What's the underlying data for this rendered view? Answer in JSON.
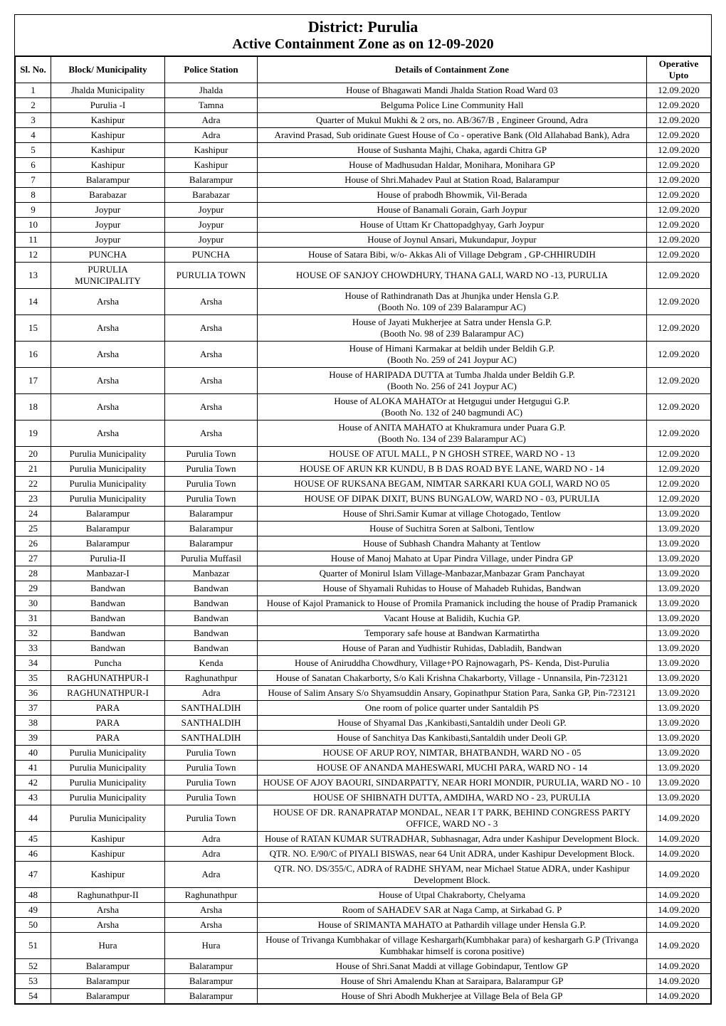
{
  "header": {
    "title": "District: Purulia",
    "subtitle": "Active Containment Zone as on 12-09-2020"
  },
  "columns": {
    "sl": "Sl. No.",
    "block": "Block/ Municipality",
    "ps": "Police Station",
    "details": "Details of Containment Zone",
    "date": "Operative Upto"
  },
  "style": {
    "font_family": "Times New Roman",
    "title_fontsize": 22,
    "subtitle_fontsize": 20,
    "cell_fontsize": 13,
    "border_color": "#000000",
    "background_color": "#ffffff",
    "text_color": "#000000",
    "col_widths": {
      "sl": 50,
      "block": 160,
      "ps": 130,
      "date": 90
    }
  },
  "rows": [
    {
      "sl": "1",
      "block": "Jhalda Municipality",
      "ps": "Jhalda",
      "details": "House of Bhagawati Mandi Jhalda Station Road Ward 03",
      "date": "12.09.2020"
    },
    {
      "sl": "2",
      "block": "Purulia -I",
      "ps": "Tamna",
      "details": "Belguma Police Line Community Hall",
      "date": "12.09.2020"
    },
    {
      "sl": "3",
      "block": "Kashipur",
      "ps": "Adra",
      "details": "Quarter of Mukul Mukhi & 2 ors,  no. AB/367/B , Engineer Ground, Adra",
      "date": "12.09.2020"
    },
    {
      "sl": "4",
      "block": "Kashipur",
      "ps": "Adra",
      "details": "Aravind Prasad, Sub oridinate Guest House of Co - operative Bank (Old Allahabad Bank), Adra",
      "date": "12.09.2020"
    },
    {
      "sl": "5",
      "block": "Kashipur",
      "ps": "Kashipur",
      "details": "House of Sushanta Majhi, Chaka, agardi Chitra GP",
      "date": "12.09.2020"
    },
    {
      "sl": "6",
      "block": "Kashipur",
      "ps": "Kashipur",
      "details": "House of Madhusudan Haldar, Monihara, Monihara GP",
      "date": "12.09.2020"
    },
    {
      "sl": "7",
      "block": "Balarampur",
      "ps": "Balarampur",
      "details": "House of Shri.Mahadev Paul at Station Road, Balarampur",
      "date": "12.09.2020"
    },
    {
      "sl": "8",
      "block": "Barabazar",
      "ps": "Barabazar",
      "details": "House of prabodh Bhowmik, Vil-Berada",
      "date": "12.09.2020"
    },
    {
      "sl": "9",
      "block": "Joypur",
      "ps": "Joypur",
      "details": "House of Banamali Gorain, Garh Joypur",
      "date": "12.09.2020"
    },
    {
      "sl": "10",
      "block": "Joypur",
      "ps": "Joypur",
      "details": "House of Uttam Kr Chattopadghyay, Garh Joypur",
      "date": "12.09.2020"
    },
    {
      "sl": "11",
      "block": "Joypur",
      "ps": "Joypur",
      "details": "House of Joynul Ansari, Mukundapur, Joypur",
      "date": "12.09.2020"
    },
    {
      "sl": "12",
      "block": "PUNCHA",
      "ps": "PUNCHA",
      "details": "House of Satara Bibi,  w/o- Akkas Ali of Village Debgram , GP-CHHIRUDIH",
      "date": "12.09.2020"
    },
    {
      "sl": "13",
      "block": "PURULIA MUNICIPALITY",
      "ps": "PURULIA TOWN",
      "details": "HOUSE OF SANJOY CHOWDHURY, THANA GALI, WARD NO -13, PURULIA",
      "date": "12.09.2020"
    },
    {
      "sl": "14",
      "block": "Arsha",
      "ps": "Arsha",
      "details": "House of Rathindranath Das at Jhunjka under Hensla G.P.\n(Booth No. 109 of 239 Balarampur AC)",
      "date": "12.09.2020"
    },
    {
      "sl": "15",
      "block": "Arsha",
      "ps": "Arsha",
      "details": "House of  Jayati Mukherjee  at Satra under Hensla G.P.\n(Booth No. 98 of 239 Balarampur AC)",
      "date": "12.09.2020"
    },
    {
      "sl": "16",
      "block": "Arsha",
      "ps": "Arsha",
      "details": "House of Himani Karmakar at beldih under Beldih G.P.\n(Booth No. 259 of 241 Joypur AC)",
      "date": "12.09.2020"
    },
    {
      "sl": "17",
      "block": "Arsha",
      "ps": "Arsha",
      "details": "House of HARIPADA DUTTA at Tumba Jhalda under Beldih G.P.\n(Booth No. 256 of 241 Joypur AC)",
      "date": "12.09.2020"
    },
    {
      "sl": "18",
      "block": "Arsha",
      "ps": "Arsha",
      "details": "House of ALOKA MAHATOr at Hetgugui under Hetgugui G.P.\n(Booth No. 132 of 240 bagmundi AC)",
      "date": "12.09.2020"
    },
    {
      "sl": "19",
      "block": "Arsha",
      "ps": "Arsha",
      "details": "House of ANITA MAHATO at Khukramura under Puara G.P.\n(Booth No. 134 of 239 Balarampur AC)",
      "date": "12.09.2020"
    },
    {
      "sl": "20",
      "block": "Purulia Municipality",
      "ps": "Purulia Town",
      "details": "HOUSE OF ATUL MALL, P N GHOSH STREE, WARD NO - 13",
      "date": "12.09.2020"
    },
    {
      "sl": "21",
      "block": "Purulia Municipality",
      "ps": "Purulia Town",
      "details": "HOUSE OF ARUN KR KUNDU, B B DAS ROAD BYE LANE, WARD NO - 14",
      "date": "12.09.2020"
    },
    {
      "sl": "22",
      "block": "Purulia Municipality",
      "ps": "Purulia Town",
      "details": "HOUSE OF RUKSANA BEGAM, NIMTAR SARKARI KUA GOLI, WARD NO 05",
      "date": "12.09.2020"
    },
    {
      "sl": "23",
      "block": "Purulia Municipality",
      "ps": "Purulia Town",
      "details": "HOUSE OF DIPAK DIXIT, BUNS BUNGALOW, WARD NO - 03, PURULIA",
      "date": "12.09.2020"
    },
    {
      "sl": "24",
      "block": "Balarampur",
      "ps": "Balarampur",
      "details": "House of Shri.Samir Kumar at village Chotogado, Tentlow",
      "date": "13.09.2020"
    },
    {
      "sl": "25",
      "block": "Balarampur",
      "ps": "Balarampur",
      "details": "House of Suchitra Soren at Salboni, Tentlow",
      "date": "13.09.2020"
    },
    {
      "sl": "26",
      "block": "Balarampur",
      "ps": "Balarampur",
      "details": "House of Subhash Chandra Mahanty at Tentlow",
      "date": "13.09.2020"
    },
    {
      "sl": "27",
      "block": "Purulia-II",
      "ps": "Purulia Muffasil",
      "details": "House of Manoj Mahato at Upar Pindra Village,  under Pindra GP",
      "date": "13.09.2020"
    },
    {
      "sl": "28",
      "block": "Manbazar-I",
      "ps": "Manbazar",
      "details": "Quarter of Monirul Islam Village-Manbazar,Manbazar Gram Panchayat",
      "date": "13.09.2020"
    },
    {
      "sl": "29",
      "block": "Bandwan",
      "ps": "Bandwan",
      "details": "House of Shyamali Ruhidas to House of Mahadeb Ruhidas, Bandwan",
      "date": "13.09.2020"
    },
    {
      "sl": "30",
      "block": "Bandwan",
      "ps": "Bandwan",
      "details": "House of Kajol Pramanick to House of Promila Pramanick including the house of Pradip Pramanick",
      "date": "13.09.2020"
    },
    {
      "sl": "31",
      "block": "Bandwan",
      "ps": "Bandwan",
      "details": "Vacant House at Balidih, Kuchia GP.",
      "date": "13.09.2020"
    },
    {
      "sl": "32",
      "block": "Bandwan",
      "ps": "Bandwan",
      "details": "Temporary safe house at Bandwan Karmatirtha",
      "date": "13.09.2020"
    },
    {
      "sl": "33",
      "block": "Bandwan",
      "ps": "Bandwan",
      "details": "House of Paran and Yudhistir Ruhidas, Dabladih, Bandwan",
      "date": "13.09.2020"
    },
    {
      "sl": "34",
      "block": "Puncha",
      "ps": "Kenda",
      "details": "House of Aniruddha Chowdhury, Village+PO Rajnowagarh, PS- Kenda, Dist-Purulia",
      "date": "13.09.2020"
    },
    {
      "sl": "35",
      "block": "RAGHUNATHPUR-I",
      "ps": "Raghunathpur",
      "details": "House of Sanatan Chakarborty, S/o Kali Krishna Chakarborty,  Village - Unnansila, Pin-723121",
      "date": "13.09.2020"
    },
    {
      "sl": "36",
      "block": "RAGHUNATHPUR-I",
      "ps": "Adra",
      "details": "House of Salim Ansary S/o Shyamsuddin Ansary, Gopinathpur Station Para, Sanka GP, Pin-723121",
      "date": "13.09.2020"
    },
    {
      "sl": "37",
      "block": "PARA",
      "ps": "SANTHALDIH",
      "details": "One room of police quarter under Santaldih PS",
      "date": "13.09.2020"
    },
    {
      "sl": "38",
      "block": "PARA",
      "ps": "SANTHALDIH",
      "details": "House of Shyamal Das ,Kankibasti,Santaldih under Deoli GP.",
      "date": "13.09.2020"
    },
    {
      "sl": "39",
      "block": "PARA",
      "ps": "SANTHALDIH",
      "details": "House of  Sanchitya Das  Kankibasti,Santaldih under Deoli GP.",
      "date": "13.09.2020"
    },
    {
      "sl": "40",
      "block": "Purulia Municipality",
      "ps": "Purulia Town",
      "details": "HOUSE OF ARUP ROY, NIMTAR, BHATBANDH, WARD NO - 05",
      "date": "13.09.2020"
    },
    {
      "sl": "41",
      "block": "Purulia Municipality",
      "ps": "Purulia Town",
      "details": "HOUSE OF ANANDA MAHESWARI, MUCHI PARA, WARD NO - 14",
      "date": "13.09.2020"
    },
    {
      "sl": "42",
      "block": "Purulia Municipality",
      "ps": "Purulia Town",
      "details": "HOUSE OF AJOY BAOURI, SINDARPATTY, NEAR HORI MONDIR, PURULIA, WARD NO - 10",
      "date": "13.09.2020"
    },
    {
      "sl": "43",
      "block": "Purulia Municipality",
      "ps": "Purulia Town",
      "details": "HOUSE OF SHIBNATH DUTTA, AMDIHA, WARD NO - 23, PURULIA",
      "date": "13.09.2020"
    },
    {
      "sl": "44",
      "block": "Purulia Municipality",
      "ps": "Purulia Town",
      "details": "HOUSE OF DR. RANAPRATAP MONDAL, NEAR I T PARK, BEHIND CONGRESS PARTY OFFICE, WARD NO - 3",
      "date": "14.09.2020"
    },
    {
      "sl": "45",
      "block": "Kashipur",
      "ps": "Adra",
      "details": "House of RATAN KUMAR SUTRADHAR, Subhasnagar, Adra under Kashipur Development Block.",
      "date": "14.09.2020"
    },
    {
      "sl": "46",
      "block": "Kashipur",
      "ps": "Adra",
      "details": "QTR. NO. E/90/C of PIYALI BISWAS, near 64 Unit ADRA, under  Kashipur Development Block.",
      "date": "14.09.2020"
    },
    {
      "sl": "47",
      "block": "Kashipur",
      "ps": "Adra",
      "details": "QTR. NO. DS/355/C, ADRA of RADHE SHYAM, near Michael Statue ADRA, under  Kashipur Development Block.",
      "date": "14.09.2020"
    },
    {
      "sl": "48",
      "block": "Raghunathpur-II",
      "ps": "Raghunathpur",
      "details": "House of Utpal Chakraborty,  Chelyama",
      "date": "14.09.2020"
    },
    {
      "sl": "49",
      "block": "Arsha",
      "ps": "Arsha",
      "details": "Room of SAHADEV SAR at Naga Camp, at Sirkabad G. P",
      "date": "14.09.2020"
    },
    {
      "sl": "50",
      "block": "Arsha",
      "ps": "Arsha",
      "details": "House of SRIMANTA MAHATO at  Pathardih village under Hensla G.P.",
      "date": "14.09.2020"
    },
    {
      "sl": "51",
      "block": "Hura",
      "ps": "Hura",
      "details": "House of Trivanga Kumbhakar of village  Keshargarh(Kumbhakar para) of keshargarh  G.P (Trivanga Kumbhakar himself is corona positive)",
      "date": "14.09.2020"
    },
    {
      "sl": "52",
      "block": "Balarampur",
      "ps": "Balarampur",
      "details": "House of Shri.Sanat Maddi at village Gobindapur, Tentlow GP",
      "date": "14.09.2020"
    },
    {
      "sl": "53",
      "block": "Balarampur",
      "ps": "Balarampur",
      "details": "House of  Shri Amalendu Khan at Saraipara, Balarampur GP",
      "date": "14.09.2020"
    },
    {
      "sl": "54",
      "block": "Balarampur",
      "ps": "Balarampur",
      "details": "House of Shri Abodh Mukherjee at Village Bela of Bela GP",
      "date": "14.09.2020"
    }
  ]
}
